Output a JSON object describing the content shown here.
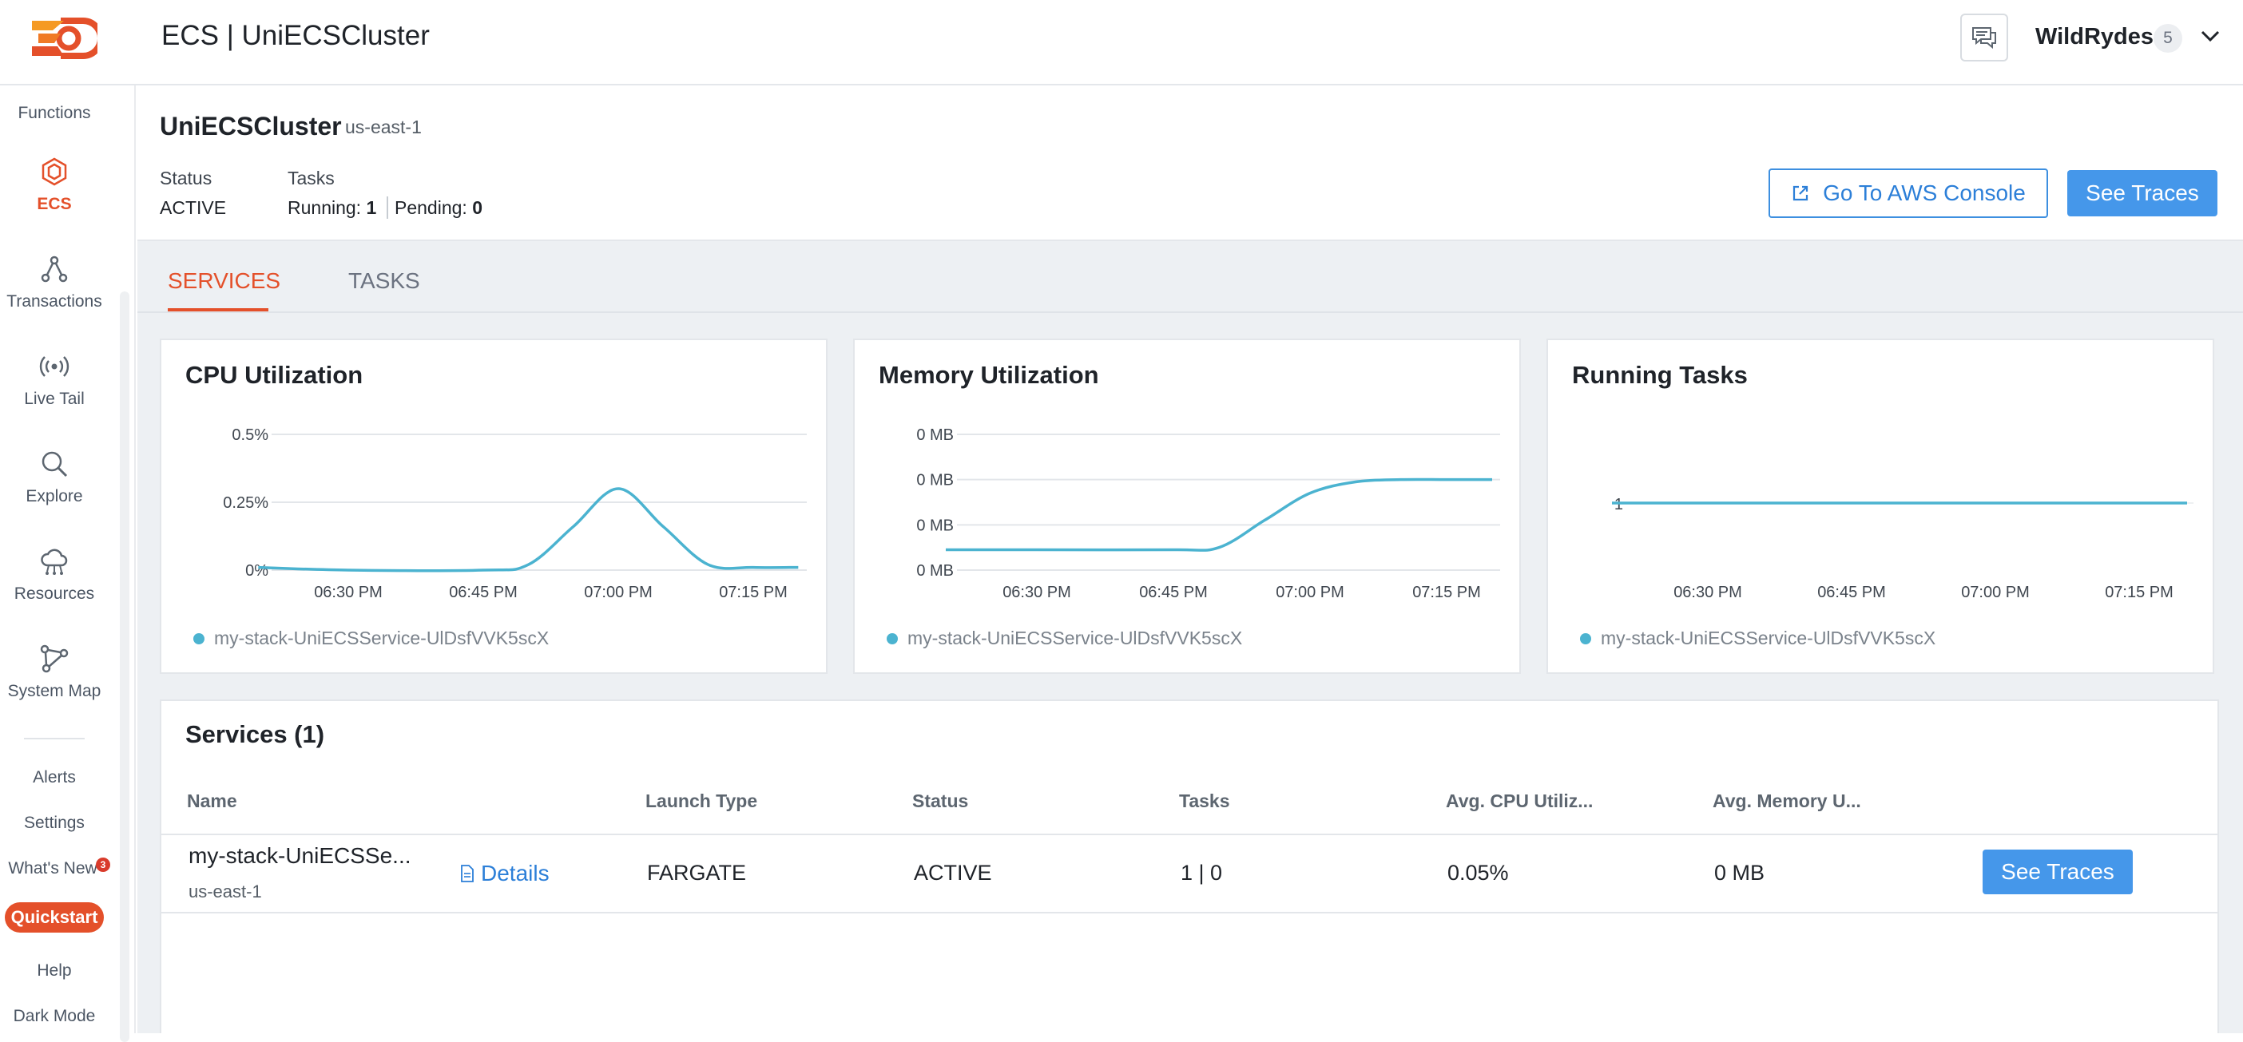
{
  "header": {
    "title": "ECS | UniECSCluster",
    "org_name": "WildRydes",
    "org_count": "5"
  },
  "sidebar": {
    "items": [
      {
        "label": "Functions",
        "icon": "function-icon"
      },
      {
        "label": "ECS",
        "icon": "ecs-icon",
        "active": true
      },
      {
        "label": "Transactions",
        "icon": "transactions-icon"
      },
      {
        "label": "Live Tail",
        "icon": "live-tail-icon"
      },
      {
        "label": "Explore",
        "icon": "search-icon"
      },
      {
        "label": "Resources",
        "icon": "resources-icon"
      },
      {
        "label": "System Map",
        "icon": "system-map-icon"
      }
    ],
    "bottom_items": {
      "alerts": "Alerts",
      "settings": "Settings",
      "whats_new": "What's New",
      "whats_new_badge": "3",
      "quickstart": "Quickstart",
      "help": "Help",
      "dark_mode": "Dark Mode"
    }
  },
  "cluster": {
    "name": "UniECSCluster",
    "region": "us-east-1",
    "status_label": "Status",
    "status_value": "ACTIVE",
    "tasks_label": "Tasks",
    "running_label": "Running:",
    "running_value": "1",
    "pending_label": "Pending:",
    "pending_value": "0",
    "aws_console_button": "Go To AWS Console",
    "see_traces_button": "See Traces"
  },
  "tabs": [
    "SERVICES",
    "TASKS"
  ],
  "chart_data": [
    {
      "type": "line",
      "title": "CPU Utilization",
      "x_ticks": [
        "06:30 PM",
        "06:45 PM",
        "07:00 PM",
        "07:15 PM"
      ],
      "y_ticks": [
        "0.5%",
        "0.25%",
        "0%"
      ],
      "ylim": [
        0,
        0.5
      ],
      "series": [
        {
          "name": "my-stack-UniECSService-UlDsfVVK5scX",
          "x": [
            "06:20 PM",
            "06:30 PM",
            "06:45 PM",
            "06:50 PM",
            "06:55 PM",
            "07:00 PM",
            "07:05 PM",
            "07:10 PM",
            "07:15 PM",
            "07:20 PM"
          ],
          "values": [
            0.01,
            0.0,
            0.0,
            0.02,
            0.16,
            0.3,
            0.16,
            0.02,
            0.01,
            0.01
          ]
        }
      ],
      "color": "#4bb3d0"
    },
    {
      "type": "line",
      "title": "Memory Utilization",
      "x_ticks": [
        "06:30 PM",
        "06:45 PM",
        "07:00 PM",
        "07:15 PM"
      ],
      "y_ticks": [
        "0 MB",
        "0 MB",
        "0 MB",
        "0 MB"
      ],
      "ylim": [
        0,
        3
      ],
      "series": [
        {
          "name": "my-stack-UniECSService-UlDsfVVK5scX",
          "x": [
            "06:20 PM",
            "06:30 PM",
            "06:45 PM",
            "06:50 PM",
            "06:55 PM",
            "07:00 PM",
            "07:05 PM",
            "07:10 PM",
            "07:15 PM",
            "07:20 PM"
          ],
          "values": [
            0.45,
            0.45,
            0.45,
            0.5,
            1.1,
            1.7,
            1.95,
            2.0,
            2.0,
            2.0
          ]
        }
      ],
      "color": "#4bb3d0"
    },
    {
      "type": "line",
      "title": "Running Tasks",
      "x_ticks": [
        "06:30 PM",
        "06:45 PM",
        "07:00 PM",
        "07:15 PM"
      ],
      "y_ticks": [
        "1"
      ],
      "ylim": [
        0,
        2
      ],
      "series": [
        {
          "name": "my-stack-UniECSService-UlDsfVVK5scX",
          "x": [
            "06:20 PM",
            "07:20 PM"
          ],
          "values": [
            1,
            1
          ]
        }
      ],
      "color": "#4bb3d0"
    }
  ],
  "services": {
    "title": "Services (1)",
    "columns": [
      "Name",
      "Launch Type",
      "Status",
      "Tasks",
      "Avg. CPU Utiliz...",
      "Avg. Memory U..."
    ],
    "rows": [
      {
        "name": "my-stack-UniECSSe...",
        "region": "us-east-1",
        "details": "Details",
        "launch_type": "FARGATE",
        "status": "ACTIVE",
        "tasks": "1 | 0",
        "avg_cpu": "0.05%",
        "avg_memory": "0 MB",
        "action": "See Traces"
      }
    ]
  }
}
